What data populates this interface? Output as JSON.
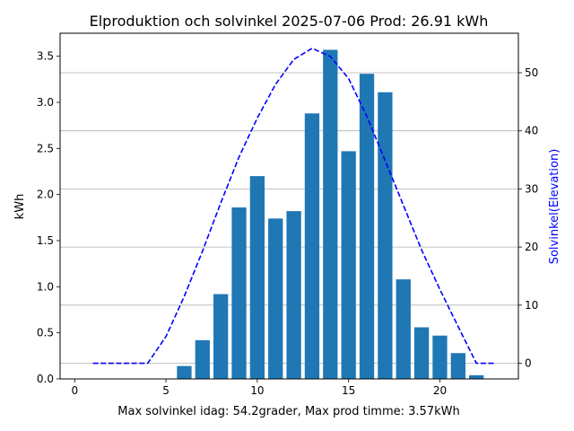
{
  "chart_data": {
    "type": "bar",
    "title": "Elproduktion och solvinkel 2025-07-06 Prod: 26.91 kWh",
    "xlabel": "Max solvinkel idag: 54.2grader, Max prod timme: 3.57kWh",
    "ylabel": "kWh",
    "y2label": "Solvinkel(Elevation)",
    "xlim": [
      -0.8,
      24.3
    ],
    "ylim": [
      0,
      3.75
    ],
    "y2lim": [
      -2.7,
      56.8
    ],
    "x_ticks": [
      0,
      5,
      10,
      15,
      20
    ],
    "y_ticks": [
      0.0,
      0.5,
      1.0,
      1.5,
      2.0,
      2.5,
      3.0,
      3.5
    ],
    "y_tick_labels": [
      "0.0",
      "0.5",
      "1.0",
      "1.5",
      "2.0",
      "2.5",
      "3.0",
      "3.5"
    ],
    "y2_ticks": [
      0,
      10,
      20,
      30,
      40,
      50
    ],
    "grid": "right-axis horizontal",
    "bars": {
      "name": "kWh",
      "color": "#1f77b4",
      "x": [
        6,
        7,
        8,
        9,
        10,
        11,
        12,
        13,
        14,
        15,
        16,
        17,
        18,
        19,
        20,
        21,
        22
      ],
      "values": [
        0.14,
        0.42,
        0.92,
        1.86,
        2.2,
        1.74,
        1.82,
        2.88,
        3.57,
        2.47,
        3.31,
        3.11,
        1.08,
        0.56,
        0.47,
        0.28,
        0.04
      ]
    },
    "line": {
      "name": "Solvinkel",
      "color": "#0000ff",
      "style": "dashed",
      "x": [
        1,
        2,
        3,
        4,
        5,
        6,
        7,
        8,
        9,
        10,
        11,
        12,
        13,
        14,
        15,
        16,
        17,
        18,
        19,
        20,
        21,
        22,
        23
      ],
      "values": [
        0,
        0,
        0,
        0,
        4.6,
        11.5,
        19.3,
        27.6,
        35.5,
        42.2,
        48,
        52.3,
        54.2,
        52.8,
        49,
        42.5,
        34.9,
        27.2,
        19.5,
        12.7,
        6.3,
        0,
        0
      ]
    }
  }
}
